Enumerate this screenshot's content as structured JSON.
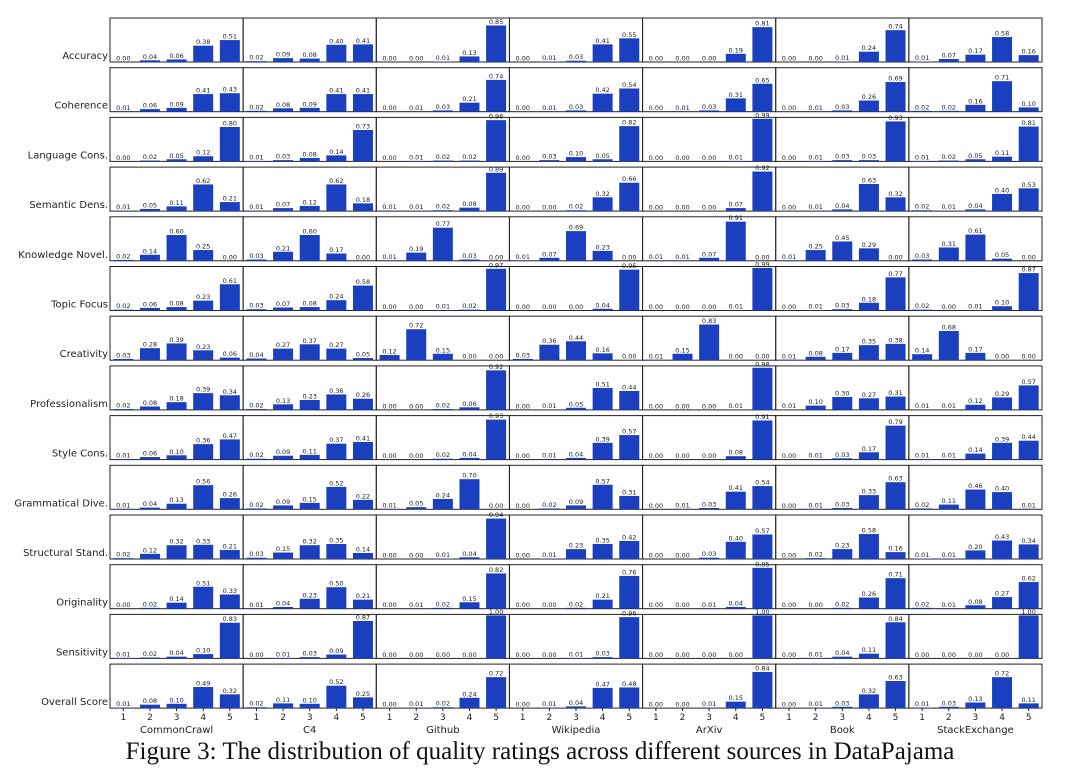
{
  "caption": "Figure 3: The distribution of quality ratings across different sources in DataPajama",
  "chart_data": {
    "type": "bar",
    "title": "The distribution of quality ratings across different sources in DataPajama",
    "categories": [
      "1",
      "2",
      "3",
      "4",
      "5"
    ],
    "sources": [
      "CommonCrawl",
      "C4",
      "Github",
      "Wikipedia",
      "ArXiv",
      "Book",
      "StackExchange"
    ],
    "metrics": [
      "Accuracy",
      "Coherence",
      "Language Cons.",
      "Semantic Dens.",
      "Knowledge Novel.",
      "Topic Focus",
      "Creativity",
      "Professionalism",
      "Style Cons.",
      "Grammatical Dive.",
      "Structural Stand.",
      "Originality",
      "Sensitivity",
      "Overall Score"
    ],
    "values": [
      [
        [
          0.0,
          0.04,
          0.06,
          0.38,
          0.51
        ],
        [
          0.02,
          0.09,
          0.08,
          0.4,
          0.41
        ],
        [
          0.0,
          0.0,
          0.01,
          0.13,
          0.85
        ],
        [
          0.0,
          0.01,
          0.03,
          0.41,
          0.55
        ],
        [
          0.0,
          0.0,
          0.0,
          0.19,
          0.81
        ],
        [
          0.0,
          0.0,
          0.01,
          0.24,
          0.74
        ],
        [
          0.01,
          0.07,
          0.17,
          0.58,
          0.16
        ]
      ],
      [
        [
          0.01,
          0.06,
          0.09,
          0.41,
          0.43
        ],
        [
          0.02,
          0.08,
          0.09,
          0.41,
          0.41
        ],
        [
          0.0,
          0.01,
          0.03,
          0.21,
          0.74
        ],
        [
          0.0,
          0.01,
          0.03,
          0.42,
          0.54
        ],
        [
          0.0,
          0.01,
          0.03,
          0.31,
          0.65
        ],
        [
          0.0,
          0.01,
          0.03,
          0.26,
          0.69
        ],
        [
          0.02,
          0.02,
          0.16,
          0.71,
          0.1
        ]
      ],
      [
        [
          0.0,
          0.02,
          0.05,
          0.12,
          0.8
        ],
        [
          0.01,
          0.03,
          0.08,
          0.14,
          0.73
        ],
        [
          0.0,
          0.01,
          0.02,
          0.02,
          0.96
        ],
        [
          0.0,
          0.03,
          0.1,
          0.05,
          0.82
        ],
        [
          0.0,
          0.0,
          0.0,
          0.01,
          0.99
        ],
        [
          0.0,
          0.01,
          0.03,
          0.03,
          0.93
        ],
        [
          0.01,
          0.02,
          0.05,
          0.11,
          0.81
        ]
      ],
      [
        [
          0.01,
          0.05,
          0.11,
          0.62,
          0.21
        ],
        [
          0.01,
          0.07,
          0.12,
          0.62,
          0.18
        ],
        [
          0.01,
          0.01,
          0.02,
          0.08,
          0.89
        ],
        [
          0.0,
          0.0,
          0.02,
          0.32,
          0.66
        ],
        [
          0.0,
          0.0,
          0.0,
          0.07,
          0.92
        ],
        [
          0.0,
          0.01,
          0.04,
          0.63,
          0.32
        ],
        [
          0.02,
          0.01,
          0.04,
          0.4,
          0.53
        ]
      ],
      [
        [
          0.02,
          0.14,
          0.6,
          0.25,
          0.0
        ],
        [
          0.03,
          0.21,
          0.6,
          0.17,
          0.0
        ],
        [
          0.01,
          0.19,
          0.77,
          0.03,
          0.0
        ],
        [
          0.01,
          0.07,
          0.69,
          0.23,
          0.0
        ],
        [
          0.01,
          0.01,
          0.07,
          0.91,
          0.0
        ],
        [
          0.01,
          0.25,
          0.45,
          0.29,
          0.0
        ],
        [
          0.03,
          0.31,
          0.61,
          0.05,
          0.0
        ]
      ],
      [
        [
          0.02,
          0.06,
          0.08,
          0.23,
          0.61
        ],
        [
          0.03,
          0.07,
          0.08,
          0.24,
          0.58
        ],
        [
          0.0,
          0.0,
          0.01,
          0.02,
          0.97
        ],
        [
          0.0,
          0.0,
          0.0,
          0.04,
          0.95
        ],
        [
          0.0,
          0.0,
          0.0,
          0.01,
          0.99
        ],
        [
          0.0,
          0.01,
          0.03,
          0.18,
          0.77
        ],
        [
          0.02,
          0.0,
          0.01,
          0.1,
          0.87
        ]
      ],
      [
        [
          0.03,
          0.28,
          0.39,
          0.23,
          0.06
        ],
        [
          0.04,
          0.27,
          0.37,
          0.27,
          0.05
        ],
        [
          0.12,
          0.72,
          0.15,
          0.0,
          0.0
        ],
        [
          0.03,
          0.36,
          0.44,
          0.16,
          0.0
        ],
        [
          0.01,
          0.15,
          0.83,
          0.0,
          0.0
        ],
        [
          0.01,
          0.08,
          0.17,
          0.35,
          0.38
        ],
        [
          0.14,
          0.68,
          0.17,
          0.0,
          0.0
        ]
      ],
      [
        [
          0.02,
          0.08,
          0.18,
          0.39,
          0.34
        ],
        [
          0.02,
          0.13,
          0.23,
          0.36,
          0.26
        ],
        [
          0.0,
          0.0,
          0.02,
          0.06,
          0.92
        ],
        [
          0.0,
          0.01,
          0.05,
          0.51,
          0.44
        ],
        [
          0.0,
          0.0,
          0.0,
          0.01,
          0.98
        ],
        [
          0.01,
          0.1,
          0.3,
          0.27,
          0.31
        ],
        [
          0.01,
          0.01,
          0.12,
          0.29,
          0.57
        ]
      ],
      [
        [
          0.01,
          0.06,
          0.1,
          0.36,
          0.47
        ],
        [
          0.02,
          0.09,
          0.11,
          0.37,
          0.41
        ],
        [
          0.0,
          0.0,
          0.02,
          0.04,
          0.93
        ],
        [
          0.0,
          0.01,
          0.04,
          0.39,
          0.57
        ],
        [
          0.0,
          0.0,
          0.0,
          0.08,
          0.91
        ],
        [
          0.0,
          0.01,
          0.03,
          0.17,
          0.79
        ],
        [
          0.01,
          0.01,
          0.14,
          0.39,
          0.44
        ]
      ],
      [
        [
          0.01,
          0.04,
          0.13,
          0.56,
          0.26
        ],
        [
          0.02,
          0.09,
          0.15,
          0.52,
          0.22
        ],
        [
          0.01,
          0.05,
          0.24,
          0.7,
          0.0
        ],
        [
          0.0,
          0.02,
          0.09,
          0.57,
          0.31
        ],
        [
          0.0,
          0.01,
          0.03,
          0.41,
          0.54
        ],
        [
          0.0,
          0.01,
          0.03,
          0.33,
          0.63
        ],
        [
          0.02,
          0.11,
          0.46,
          0.4,
          0.01
        ]
      ],
      [
        [
          0.02,
          0.12,
          0.32,
          0.33,
          0.21
        ],
        [
          0.03,
          0.15,
          0.32,
          0.35,
          0.14
        ],
        [
          0.0,
          0.0,
          0.01,
          0.04,
          0.94
        ],
        [
          0.0,
          0.01,
          0.23,
          0.35,
          0.42
        ],
        [
          0.0,
          0.0,
          0.03,
          0.4,
          0.57
        ],
        [
          0.0,
          0.02,
          0.23,
          0.58,
          0.16
        ],
        [
          0.01,
          0.01,
          0.2,
          0.43,
          0.34
        ]
      ],
      [
        [
          0.0,
          0.02,
          0.14,
          0.51,
          0.33
        ],
        [
          0.01,
          0.04,
          0.23,
          0.5,
          0.21
        ],
        [
          0.0,
          0.01,
          0.02,
          0.15,
          0.82
        ],
        [
          0.0,
          0.0,
          0.02,
          0.21,
          0.76
        ],
        [
          0.0,
          0.0,
          0.01,
          0.04,
          0.95
        ],
        [
          0.0,
          0.0,
          0.02,
          0.26,
          0.71
        ],
        [
          0.02,
          0.01,
          0.08,
          0.27,
          0.62
        ]
      ],
      [
        [
          0.01,
          0.02,
          0.04,
          0.1,
          0.83
        ],
        [
          0.0,
          0.01,
          0.03,
          0.09,
          0.87
        ],
        [
          0.0,
          0.0,
          0.0,
          0.0,
          1.0
        ],
        [
          0.0,
          0.0,
          0.01,
          0.03,
          0.96
        ],
        [
          0.0,
          0.0,
          0.0,
          0.0,
          1.0
        ],
        [
          0.0,
          0.01,
          0.04,
          0.11,
          0.84
        ],
        [
          0.0,
          0.0,
          0.0,
          0.0,
          1.0
        ]
      ],
      [
        [
          0.01,
          0.08,
          0.1,
          0.49,
          0.32
        ],
        [
          0.02,
          0.11,
          0.1,
          0.52,
          0.25
        ],
        [
          0.0,
          0.01,
          0.02,
          0.24,
          0.72
        ],
        [
          0.0,
          0.01,
          0.04,
          0.47,
          0.48
        ],
        [
          0.0,
          0.0,
          0.01,
          0.15,
          0.84
        ],
        [
          0.0,
          0.01,
          0.03,
          0.32,
          0.63
        ],
        [
          0.01,
          0.03,
          0.13,
          0.72,
          0.11
        ]
      ]
    ],
    "ylim": [
      0,
      1
    ],
    "bar_color": "#1a3fbf",
    "grid": false
  }
}
